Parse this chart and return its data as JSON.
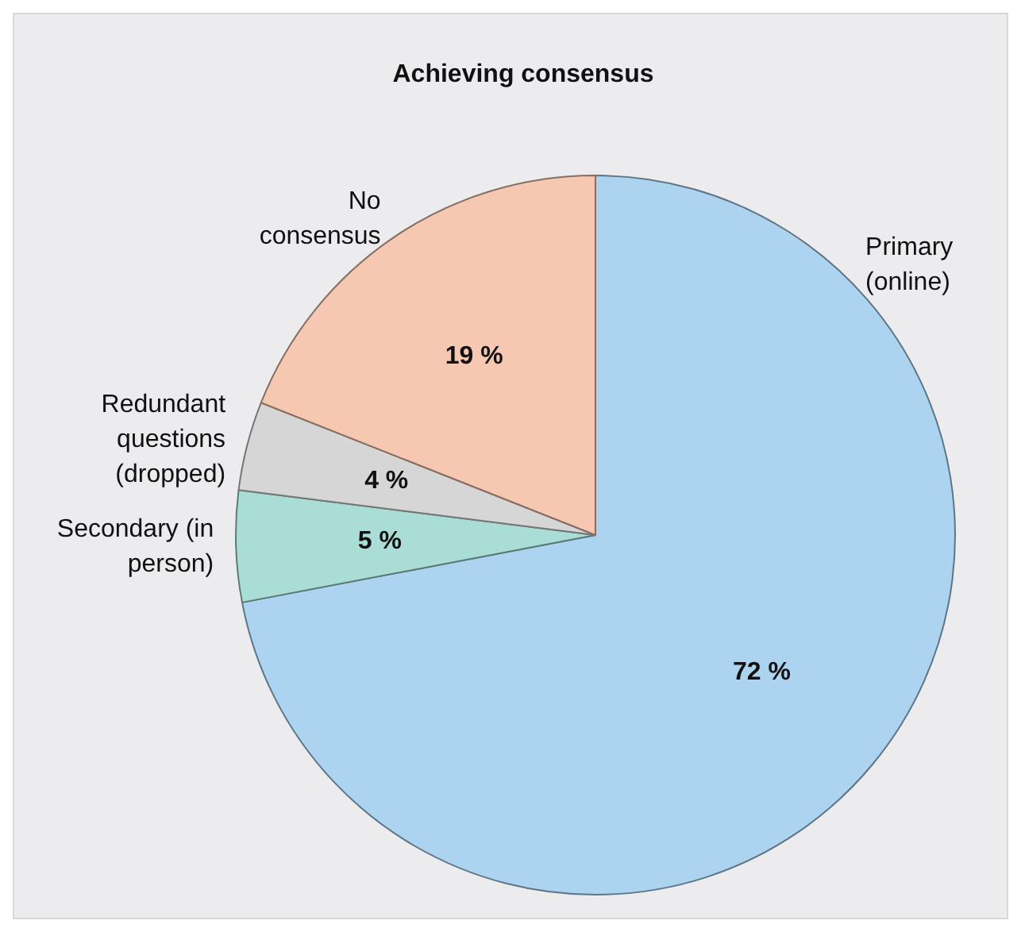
{
  "chart_data": {
    "type": "pie",
    "title": "Achieving consensus",
    "categories": [
      "Primary (online)",
      "Secondary (in person)",
      "Redundant questions (dropped)",
      "No consensus"
    ],
    "values": [
      72,
      5,
      4,
      19
    ],
    "colors": [
      "#acd4f1",
      "#a9ddd6",
      "#d6d6d6",
      "#f6c8b2"
    ],
    "value_labels": [
      "72 %",
      "5 %",
      "4 %",
      "19 %"
    ],
    "legend": false
  }
}
